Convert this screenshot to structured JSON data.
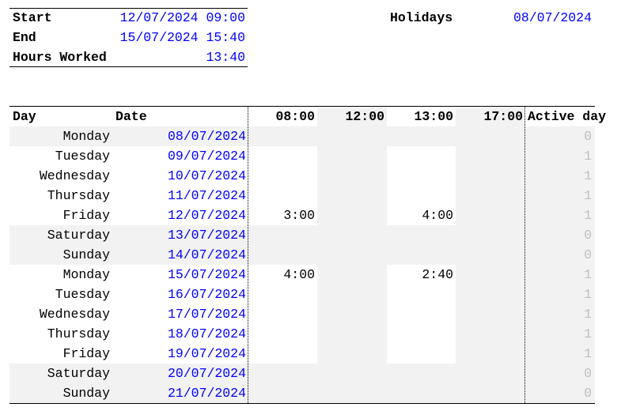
{
  "summary": {
    "start_label": "Start",
    "start_value": "12/07/2024 09:00",
    "end_label": "End",
    "end_value": "15/07/2024 15:40",
    "hours_label": "Hours Worked",
    "hours_value": "13:40",
    "holidays_label": "Holidays",
    "holidays_value": "08/07/2024"
  },
  "table": {
    "headers": {
      "day": "Day",
      "date": "Date",
      "t1": "08:00",
      "t2": "12:00",
      "t3": "13:00",
      "t4": "17:00",
      "active": "Active day"
    },
    "rows": [
      {
        "day": "Monday",
        "date": "08/07/2024",
        "morning": "",
        "afternoon": "",
        "active": "0"
      },
      {
        "day": "Tuesday",
        "date": "09/07/2024",
        "morning": "",
        "afternoon": "",
        "active": "1"
      },
      {
        "day": "Wednesday",
        "date": "10/07/2024",
        "morning": "",
        "afternoon": "",
        "active": "1"
      },
      {
        "day": "Thursday",
        "date": "11/07/2024",
        "morning": "",
        "afternoon": "",
        "active": "1"
      },
      {
        "day": "Friday",
        "date": "12/07/2024",
        "morning": "3:00",
        "afternoon": "4:00",
        "active": "1"
      },
      {
        "day": "Saturday",
        "date": "13/07/2024",
        "morning": "",
        "afternoon": "",
        "active": "0"
      },
      {
        "day": "Sunday",
        "date": "14/07/2024",
        "morning": "",
        "afternoon": "",
        "active": "0"
      },
      {
        "day": "Monday",
        "date": "15/07/2024",
        "morning": "4:00",
        "afternoon": "2:40",
        "active": "1"
      },
      {
        "day": "Tuesday",
        "date": "16/07/2024",
        "morning": "",
        "afternoon": "",
        "active": "1"
      },
      {
        "day": "Wednesday",
        "date": "17/07/2024",
        "morning": "",
        "afternoon": "",
        "active": "1"
      },
      {
        "day": "Thursday",
        "date": "18/07/2024",
        "morning": "",
        "afternoon": "",
        "active": "1"
      },
      {
        "day": "Friday",
        "date": "19/07/2024",
        "morning": "",
        "afternoon": "",
        "active": "1"
      },
      {
        "day": "Saturday",
        "date": "20/07/2024",
        "morning": "",
        "afternoon": "",
        "active": "0"
      },
      {
        "day": "Sunday",
        "date": "21/07/2024",
        "morning": "",
        "afternoon": "",
        "active": "0"
      }
    ]
  },
  "colors": {
    "value": "#0000ff",
    "shade": "#f2f2f2",
    "inactive": "#c0c0c0"
  }
}
